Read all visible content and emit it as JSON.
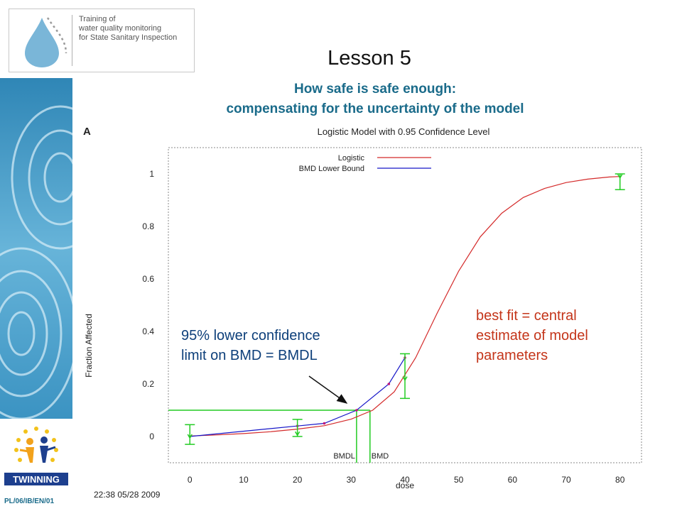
{
  "header": {
    "logo_text": [
      "Training of",
      "water quality monitoring",
      "for State Sanitary Inspection"
    ],
    "lesson_title": "Lesson 5",
    "subtitle": [
      "How safe is safe enough:",
      "compensating for the uncertainty of the model"
    ]
  },
  "footer": {
    "code": "PL/06/IB/EN/01",
    "twinning_label": "TWINNING"
  },
  "callouts": {
    "bmdl": [
      "95% lower confidence",
      "limit on BMD = BMDL"
    ],
    "best_fit": [
      "best fit = central",
      "estimate of model",
      "parameters"
    ]
  },
  "colors": {
    "title_blue": "#1a6b8a",
    "logistic": "#d42a2a",
    "bmd_lower": "#1616c8",
    "error_bars": "#22cc22",
    "callout_red": "#c4351a",
    "callout_blue": "#0d3f7a"
  },
  "chart_data": {
    "type": "line",
    "panel_label": "A",
    "title": "Logistic Model with 0.95 Confidence Level",
    "xlabel": "dose",
    "ylabel": "Fraction Affected",
    "xlim": [
      -4,
      84
    ],
    "ylim": [
      -0.1,
      1.1
    ],
    "xticks": [
      0,
      10,
      20,
      30,
      40,
      50,
      60,
      70,
      80
    ],
    "yticks": [
      0,
      0.2,
      0.4,
      0.6,
      0.8,
      1
    ],
    "ytick_labels": [
      "0",
      "0.2",
      "0.4",
      "0.6",
      "0.8",
      "1"
    ],
    "timestamp": "22:38 05/28 2009",
    "legend_position": "top-left",
    "series": [
      {
        "name": "Logistic",
        "x": [
          0,
          5,
          10,
          15,
          20,
          25,
          30,
          34,
          38,
          42,
          46,
          50,
          54,
          58,
          62,
          66,
          70,
          74,
          78,
          80
        ],
        "y": [
          0.002,
          0.006,
          0.011,
          0.018,
          0.028,
          0.041,
          0.066,
          0.1,
          0.17,
          0.3,
          0.47,
          0.63,
          0.76,
          0.85,
          0.91,
          0.945,
          0.967,
          0.98,
          0.988,
          0.99
        ]
      },
      {
        "name": "BMD Lower Bound",
        "x": [
          0,
          20,
          25,
          31,
          37,
          40
        ],
        "y": [
          0.0,
          0.04,
          0.05,
          0.1,
          0.2,
          0.3
        ]
      }
    ],
    "observations": [
      {
        "x": 0,
        "y": 0.0,
        "low": -0.03,
        "high": 0.045
      },
      {
        "x": 20,
        "y": 0.01,
        "low": 0.0,
        "high": 0.065
      },
      {
        "x": 40,
        "y": 0.22,
        "low": 0.145,
        "high": 0.315
      },
      {
        "x": 80,
        "y": 0.99,
        "low": 0.94,
        "high": 1.0
      }
    ],
    "benchmark": {
      "bmr": 0.1,
      "bmd": 33.5,
      "bmdl": 31,
      "bmd_label": "BMD",
      "bmdl_label": "BMDL"
    }
  }
}
